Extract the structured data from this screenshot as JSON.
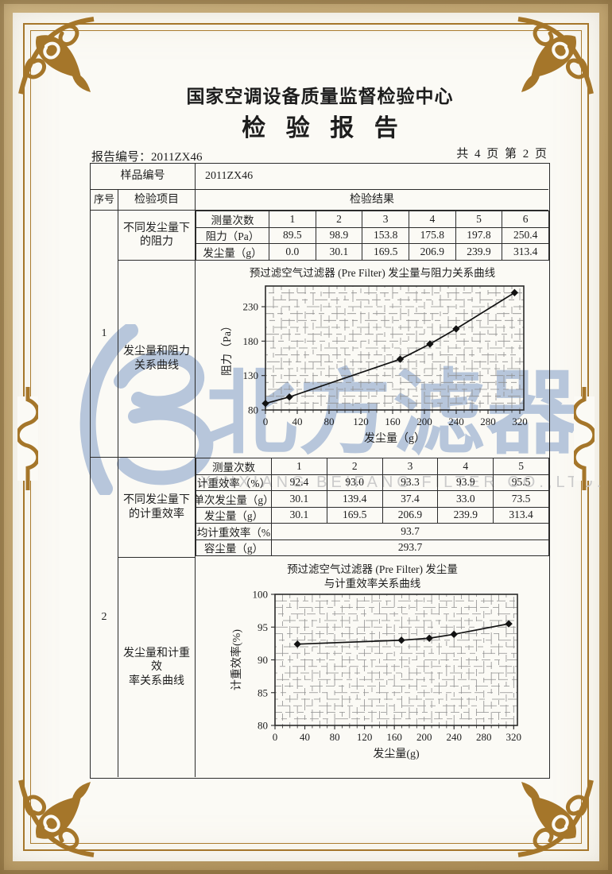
{
  "palette": {
    "frame_gold": "#a5762a",
    "outer_tan": "#c0a470",
    "watermark_blue": "#b7c6db",
    "watermark_gray": "#cbcbcb",
    "ink": "#1d1d1d"
  },
  "header": {
    "org_title": "国家空调设备质量监督检验中心",
    "report_title": "检验报告",
    "report_no": "报告编号：2011ZX46",
    "pages": "共 4 页 第 2 页"
  },
  "watermark": {
    "cn": "北方滤器",
    "en": "XINXIANG BEIFANG FILTER CO.,LTD."
  },
  "table": {
    "sample_label": "样品编号",
    "sample_value": "2011ZX46",
    "col_seq": "序号",
    "col_item": "检验项目",
    "col_result": "检验结果"
  },
  "section1": {
    "seq": "1",
    "item_table": "不同发尘量下\n的阻力",
    "item_chart": "发尘量和阻力\n关系曲线",
    "inner_table": {
      "rows": [
        {
          "label": "测量次数",
          "values": [
            "1",
            "2",
            "3",
            "4",
            "5",
            "6"
          ]
        },
        {
          "label": "阻力（Pa）",
          "values": [
            "89.5",
            "98.9",
            "153.8",
            "175.8",
            "197.8",
            "250.4"
          ]
        },
        {
          "label": "发尘量（g）",
          "values": [
            "0.0",
            "30.1",
            "169.5",
            "206.9",
            "239.9",
            "313.4"
          ]
        }
      ]
    }
  },
  "section2": {
    "seq": "2",
    "item_table": "不同发尘量下\n的计重效率",
    "item_chart": "发尘量和计重效\n率关系曲线",
    "inner_table": {
      "rows": [
        {
          "label": "测量次数",
          "values": [
            "1",
            "2",
            "3",
            "4",
            "5"
          ]
        },
        {
          "label": "计重效率（%）",
          "values": [
            "92.4",
            "93.0",
            "93.3",
            "93.9",
            "95.5"
          ]
        },
        {
          "label": "单次发尘量（g）",
          "values": [
            "30.1",
            "139.4",
            "37.4",
            "33.0",
            "73.5"
          ]
        },
        {
          "label": "发尘量（g）",
          "values": [
            "30.1",
            "169.5",
            "206.9",
            "239.9",
            "313.4"
          ]
        }
      ],
      "merged_rows": [
        {
          "label": "平均计重效率（%）",
          "value": "93.7"
        },
        {
          "label": "容尘量（g）",
          "value": "293.7"
        }
      ]
    }
  },
  "chart_data": [
    {
      "type": "line",
      "title": "预过滤空气过滤器 (Pre Filter) 发尘量与阻力关系曲线",
      "xlabel": "发尘量（g）",
      "ylabel": "阻力（Pa）",
      "xlim": [
        0,
        325
      ],
      "ylim": [
        80,
        260
      ],
      "xticks": [
        0,
        40,
        80,
        120,
        160,
        200,
        240,
        280,
        320
      ],
      "yticks": [
        80,
        130,
        180,
        230
      ],
      "grid": true,
      "legend": "none",
      "x": [
        0,
        30.1,
        169.5,
        206.9,
        239.9,
        313.4
      ],
      "y": [
        89.5,
        98.9,
        153.8,
        175.8,
        197.8,
        250.4
      ]
    },
    {
      "type": "line",
      "title": "预过滤空气过滤器 (Pre Filter) 发尘量\n与计重效率关系曲线",
      "xlabel": "发尘量(g)",
      "ylabel": "计重效率(%)",
      "xlim": [
        0,
        325
      ],
      "ylim": [
        80,
        100
      ],
      "xticks": [
        0,
        40,
        80,
        120,
        160,
        200,
        240,
        280,
        320
      ],
      "yticks": [
        80,
        85,
        90,
        95,
        100
      ],
      "grid": true,
      "legend": "none",
      "x": [
        30.1,
        169.5,
        206.9,
        239.9,
        313.4
      ],
      "y": [
        92.4,
        93.0,
        93.3,
        93.9,
        95.5
      ]
    }
  ]
}
